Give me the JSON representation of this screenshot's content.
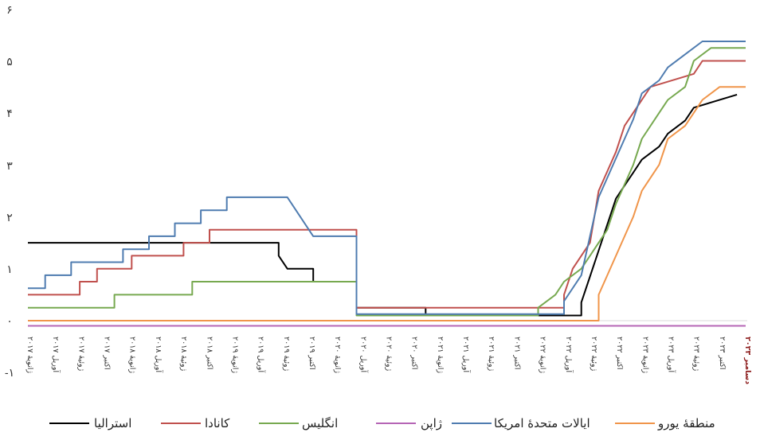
{
  "chart_data": {
    "type": "line",
    "title": "",
    "xlabel": "",
    "ylabel": "",
    "ylim": [
      -1,
      6
    ],
    "yticks": [
      "-۱",
      "۰",
      "۱",
      "۲",
      "۳",
      "۴",
      "۵",
      "۶"
    ],
    "x_labels": [
      "ژانویهٔ ۲۰۱۷",
      "آوریل ۲۰۱۷",
      "ژوئیهٔ ۲۰۱۷",
      "اکتبر ۲۰۱۷",
      "ژانویهٔ ۲۰۱۸",
      "آوریل ۲۰۱۸",
      "ژوئیهٔ ۲۰۱۸",
      "اکتبر ۲۰۱۸",
      "ژانویهٔ ۲۰۱۹",
      "آوریل ۲۰۱۹",
      "ژوئیهٔ ۲۰۱۹",
      "اکتبر ۲۰۱۹",
      "ژانویهٔ ۲۰۲۰",
      "آوریل ۲۰۲۰",
      "ژوئیهٔ ۲۰۲۰",
      "اکتبر ۲۰۲۰",
      "ژانویهٔ ۲۰۲۱",
      "آوریل ۲۰۲۱",
      "ژوئیهٔ ۲۰۲۱",
      "اکتبر ۲۰۲۱",
      "ژانویهٔ ۲۰۲۲",
      "آوریل ۲۰۲۲",
      "ژوئیهٔ ۲۰۲۲",
      "اکتبر ۲۰۲۲",
      "ژانویهٔ ۲۰۲۳",
      "آوریل ۲۰۲۳",
      "ژوئیهٔ ۲۰۲۳",
      "اکتبر ۲۰۲۳",
      "دسامبر ۲۰۲۳"
    ],
    "highlight_label_index": 28,
    "highlight_color": "#8b1a1a",
    "grid": false,
    "zero_line": true,
    "legend_position": "bottom",
    "series": [
      {
        "name": "استرالیا",
        "color": "#000000",
        "points": [
          [
            "2017-01",
            1.5
          ],
          [
            "2019-06",
            1.5
          ],
          [
            "2019-06",
            1.25
          ],
          [
            "2019-07",
            1.0
          ],
          [
            "2019-10",
            1.0
          ],
          [
            "2019-10",
            0.75
          ],
          [
            "2020-03",
            0.75
          ],
          [
            "2020-03",
            0.25
          ],
          [
            "2020-11",
            0.25
          ],
          [
            "2020-11",
            0.1
          ],
          [
            "2022-05",
            0.1
          ],
          [
            "2022-05",
            0.35
          ],
          [
            "2022-06",
            0.85
          ],
          [
            "2022-07",
            1.35
          ],
          [
            "2022-08",
            1.85
          ],
          [
            "2022-09",
            2.35
          ],
          [
            "2022-10",
            2.6
          ],
          [
            "2022-11",
            2.85
          ],
          [
            "2022-12",
            3.1
          ],
          [
            "2023-02",
            3.35
          ],
          [
            "2023-03",
            3.6
          ],
          [
            "2023-05",
            3.85
          ],
          [
            "2023-06",
            4.1
          ],
          [
            "2023-11",
            4.35
          ]
        ]
      },
      {
        "name": "کانادا",
        "color": "#c0504d",
        "points": [
          [
            "2017-01",
            0.5
          ],
          [
            "2017-07",
            0.5
          ],
          [
            "2017-07",
            0.75
          ],
          [
            "2017-09",
            0.75
          ],
          [
            "2017-09",
            1.0
          ],
          [
            "2018-01",
            1.0
          ],
          [
            "2018-01",
            1.25
          ],
          [
            "2018-07",
            1.25
          ],
          [
            "2018-07",
            1.5
          ],
          [
            "2018-10",
            1.5
          ],
          [
            "2018-10",
            1.75
          ],
          [
            "2020-03",
            1.75
          ],
          [
            "2020-03",
            0.25
          ],
          [
            "2022-03",
            0.25
          ],
          [
            "2022-03",
            0.5
          ],
          [
            "2022-04",
            1.0
          ],
          [
            "2022-06",
            1.5
          ],
          [
            "2022-07",
            2.5
          ],
          [
            "2022-09",
            3.25
          ],
          [
            "2022-10",
            3.75
          ],
          [
            "2022-12",
            4.25
          ],
          [
            "2023-01",
            4.5
          ],
          [
            "2023-06",
            4.75
          ],
          [
            "2023-07",
            5.0
          ],
          [
            "2023-12",
            5.0
          ]
        ]
      },
      {
        "name": "انگلیس",
        "color": "#77a950",
        "points": [
          [
            "2017-01",
            0.25
          ],
          [
            "2017-11",
            0.25
          ],
          [
            "2017-11",
            0.5
          ],
          [
            "2018-08",
            0.5
          ],
          [
            "2018-08",
            0.75
          ],
          [
            "2020-03",
            0.75
          ],
          [
            "2020-03",
            0.1
          ],
          [
            "2021-12",
            0.1
          ],
          [
            "2021-12",
            0.25
          ],
          [
            "2022-02",
            0.5
          ],
          [
            "2022-03",
            0.75
          ],
          [
            "2022-05",
            1.0
          ],
          [
            "2022-06",
            1.25
          ],
          [
            "2022-08",
            1.75
          ],
          [
            "2022-09",
            2.25
          ],
          [
            "2022-11",
            3.0
          ],
          [
            "2022-12",
            3.5
          ],
          [
            "2023-02",
            4.0
          ],
          [
            "2023-03",
            4.25
          ],
          [
            "2023-05",
            4.5
          ],
          [
            "2023-06",
            5.0
          ],
          [
            "2023-08",
            5.25
          ],
          [
            "2023-12",
            5.25
          ]
        ]
      },
      {
        "name": "ژاپن",
        "color": "#b565b5",
        "points": [
          [
            "2017-01",
            -0.1
          ],
          [
            "2023-12",
            -0.1
          ]
        ]
      },
      {
        "name": "ایالات متحدهٔ امریکا",
        "color": "#4f7cb0",
        "points": [
          [
            "2017-01",
            0.625
          ],
          [
            "2017-03",
            0.625
          ],
          [
            "2017-03",
            0.875
          ],
          [
            "2017-06",
            0.875
          ],
          [
            "2017-06",
            1.125
          ],
          [
            "2017-12",
            1.125
          ],
          [
            "2017-12",
            1.375
          ],
          [
            "2018-03",
            1.375
          ],
          [
            "2018-03",
            1.625
          ],
          [
            "2018-06",
            1.625
          ],
          [
            "2018-06",
            1.875
          ],
          [
            "2018-09",
            1.875
          ],
          [
            "2018-09",
            2.125
          ],
          [
            "2018-12",
            2.125
          ],
          [
            "2018-12",
            2.375
          ],
          [
            "2019-07",
            2.375
          ],
          [
            "2019-10",
            1.625
          ],
          [
            "2020-03",
            1.625
          ],
          [
            "2020-03",
            0.125
          ],
          [
            "2022-03",
            0.125
          ],
          [
            "2022-03",
            0.375
          ],
          [
            "2022-05",
            0.875
          ],
          [
            "2022-06",
            1.625
          ],
          [
            "2022-07",
            2.375
          ],
          [
            "2022-09",
            3.125
          ],
          [
            "2022-11",
            3.875
          ],
          [
            "2022-12",
            4.375
          ],
          [
            "2023-02",
            4.625
          ],
          [
            "2023-03",
            4.875
          ],
          [
            "2023-05",
            5.125
          ],
          [
            "2023-07",
            5.375
          ],
          [
            "2023-12",
            5.375
          ]
        ]
      },
      {
        "name": "منطقهٔ یورو",
        "color": "#f0954a",
        "points": [
          [
            "2017-01",
            0.0
          ],
          [
            "2022-07",
            0.0
          ],
          [
            "2022-07",
            0.5
          ],
          [
            "2022-09",
            1.25
          ],
          [
            "2022-11",
            2.0
          ],
          [
            "2022-12",
            2.5
          ],
          [
            "2023-02",
            3.0
          ],
          [
            "2023-03",
            3.5
          ],
          [
            "2023-05",
            3.75
          ],
          [
            "2023-06",
            4.0
          ],
          [
            "2023-07",
            4.25
          ],
          [
            "2023-09",
            4.5
          ],
          [
            "2023-12",
            4.5
          ]
        ]
      }
    ]
  }
}
